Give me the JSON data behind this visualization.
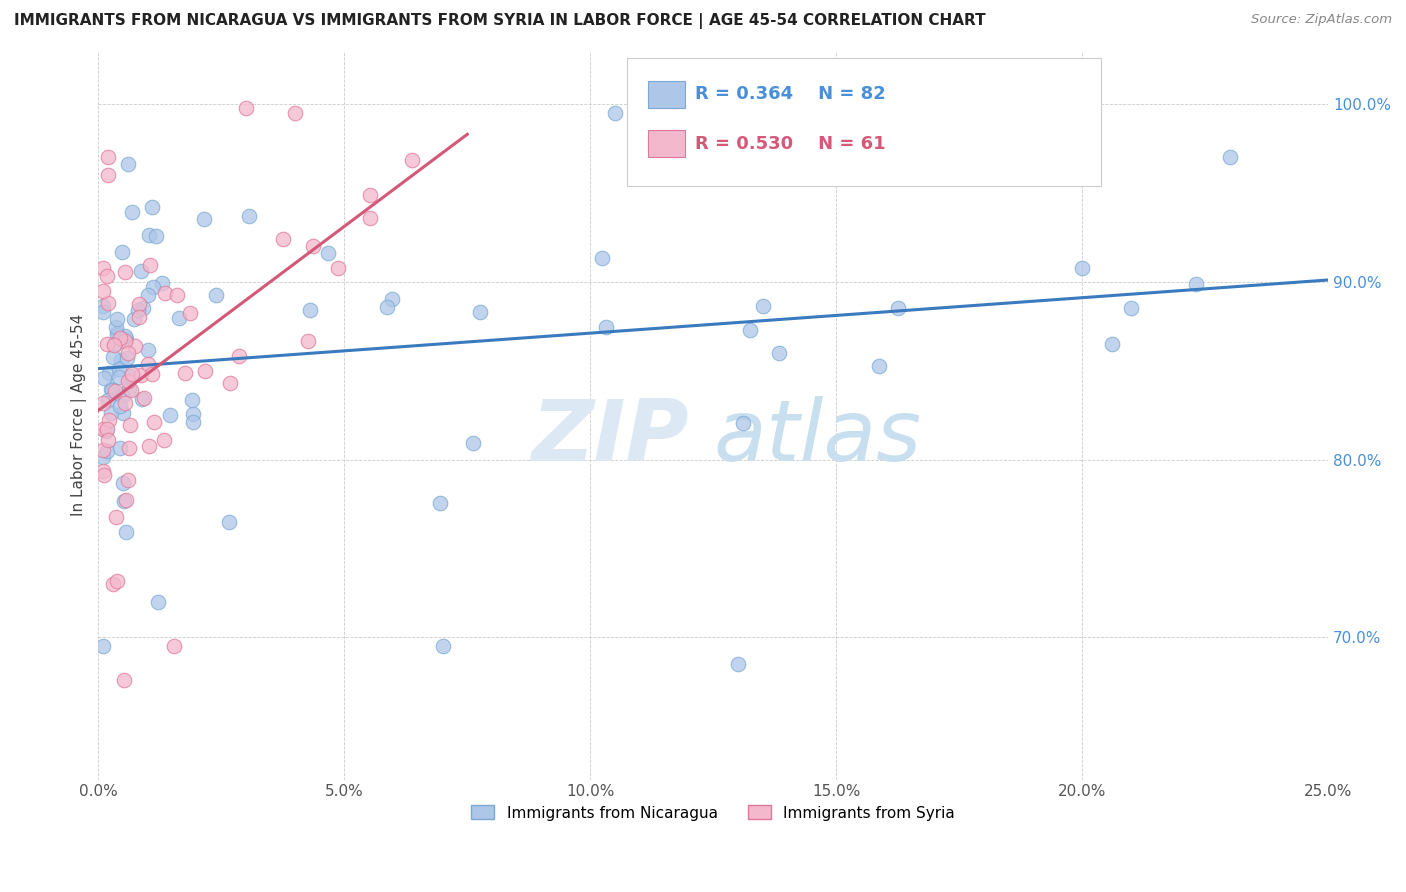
{
  "title": "IMMIGRANTS FROM NICARAGUA VS IMMIGRANTS FROM SYRIA IN LABOR FORCE | AGE 45-54 CORRELATION CHART",
  "source": "Source: ZipAtlas.com",
  "ylabel": "In Labor Force | Age 45-54",
  "xlim": [
    0.0,
    0.25
  ],
  "ylim": [
    0.62,
    1.03
  ],
  "xtick_labels": [
    "0.0%",
    "5.0%",
    "10.0%",
    "15.0%",
    "20.0%",
    "25.0%"
  ],
  "xtick_values": [
    0.0,
    0.05,
    0.1,
    0.15,
    0.2,
    0.25
  ],
  "ytick_labels": [
    "70.0%",
    "80.0%",
    "90.0%",
    "100.0%"
  ],
  "ytick_values": [
    0.7,
    0.8,
    0.9,
    1.0
  ],
  "nicaragua_color": "#aec6e8",
  "nicaragua_edge": "#7aaad4",
  "syria_color": "#f4b8cc",
  "syria_edge": "#e07898",
  "regression_nicaragua_color": "#3a7abf",
  "regression_syria_color": "#d45878",
  "legend_r_nicaragua": "R = 0.364",
  "legend_n_nicaragua": "N = 82",
  "legend_r_syria": "R = 0.530",
  "legend_n_syria": "N = 61",
  "watermark_zip": "ZIP",
  "watermark_atlas": "atlas",
  "ytick_color": "#4a90d9",
  "xtick_color": "#555555"
}
